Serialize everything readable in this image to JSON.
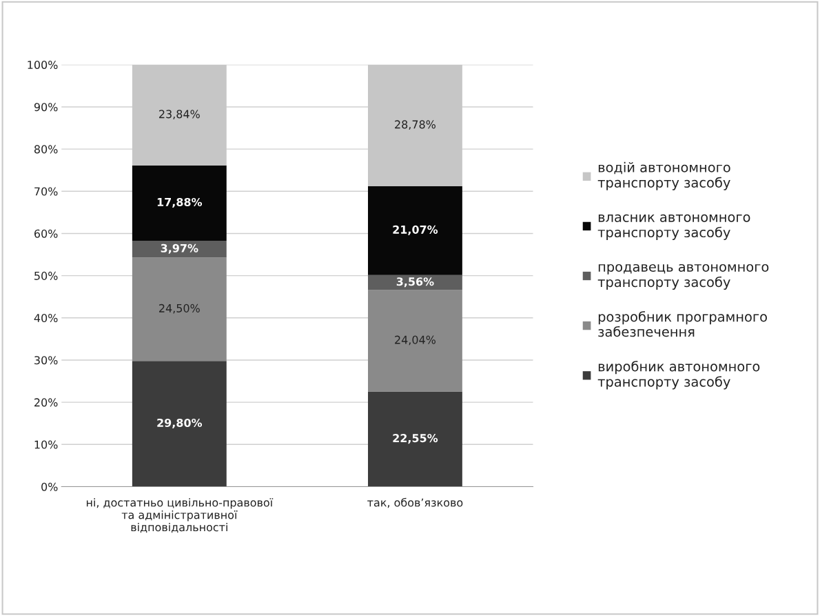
{
  "chart_data": {
    "type": "bar",
    "stacked": true,
    "categories": [
      "ні, достатньо цивільно-правової\nта адміністративної\nвідповідальності",
      "так, обов’язково"
    ],
    "series": [
      {
        "name": "виробник автономного\nтранспорту засобу",
        "color": "#3c3c3c",
        "values": [
          29.8,
          22.55
        ],
        "value_labels": [
          "29,80%",
          "22,55%"
        ]
      },
      {
        "name": "розробник програмного\nзабезпечення",
        "color": "#8a8a8a",
        "values": [
          24.5,
          24.04
        ],
        "value_labels": [
          "24,50%",
          "24,04%"
        ]
      },
      {
        "name": "продавець автономного\nтранспорту засобу",
        "color": "#5e5e5e",
        "values": [
          3.97,
          3.56
        ],
        "value_labels": [
          "3,97%",
          "3,56%"
        ]
      },
      {
        "name": "власник автономного\nтранспорту засобу",
        "color": "#080808",
        "values": [
          17.88,
          21.07
        ],
        "value_labels": [
          "17,88%",
          "21,07%"
        ]
      },
      {
        "name": "водій автономного\nтранспорту засобу",
        "color": "#c6c6c6",
        "values": [
          23.84,
          28.78
        ],
        "value_labels": [
          "23,84%",
          "28,78%"
        ]
      }
    ],
    "ylim": [
      0,
      100
    ],
    "yticks": [
      {
        "value": 0,
        "label": "0%"
      },
      {
        "value": 10,
        "label": "10%"
      },
      {
        "value": 20,
        "label": "20%"
      },
      {
        "value": 30,
        "label": "30%"
      },
      {
        "value": 40,
        "label": "40%"
      },
      {
        "value": 50,
        "label": "50%"
      },
      {
        "value": 60,
        "label": "60%"
      },
      {
        "value": 70,
        "label": "70%"
      },
      {
        "value": 80,
        "label": "80%"
      },
      {
        "value": 90,
        "label": "90%"
      },
      {
        "value": 100,
        "label": "100%"
      }
    ],
    "grid": "y",
    "legend": "right"
  }
}
